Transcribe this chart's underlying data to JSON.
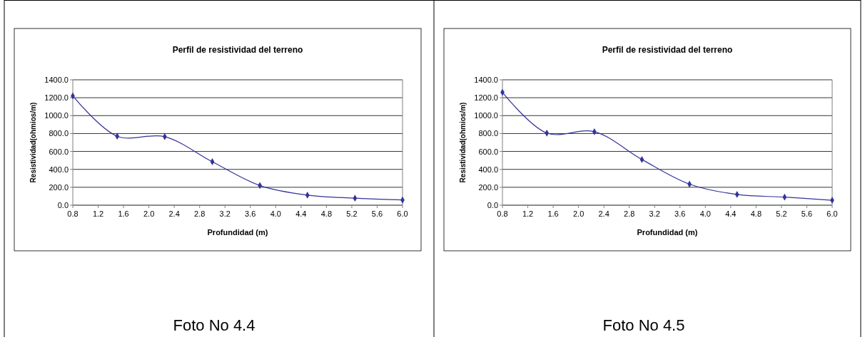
{
  "chart_data": [
    {
      "type": "line",
      "title": "Perfil de resistividad del terreno",
      "xlabel": "Profundidad (m)",
      "ylabel": "Resistividad(ohmios/m)",
      "annotations": [
        "Foto No 4.4"
      ],
      "marker": "diamond",
      "grid": "y",
      "xlim": [
        0.8,
        6.0
      ],
      "ylim": [
        0,
        1400
      ],
      "xticks": [
        {
          "value": 0.8,
          "label": "0.8"
        },
        {
          "value": 1.2,
          "label": "1.2"
        },
        {
          "value": 1.6,
          "label": "1.6"
        },
        {
          "value": 2.0,
          "label": "2.0"
        },
        {
          "value": 2.4,
          "label": "2.4"
        },
        {
          "value": 2.8,
          "label": "2.8"
        },
        {
          "value": 3.2,
          "label": "3.2"
        },
        {
          "value": 3.6,
          "label": "3.6"
        },
        {
          "value": 4.0,
          "label": "4.0"
        },
        {
          "value": 4.4,
          "label": "4.4"
        },
        {
          "value": 4.8,
          "label": "4.8"
        },
        {
          "value": 5.2,
          "label": "5.2"
        },
        {
          "value": 5.6,
          "label": "5.6"
        },
        {
          "value": 6.0,
          "label": "6.0"
        }
      ],
      "yticks": [
        {
          "value": 0,
          "label": "0.0"
        },
        {
          "value": 200,
          "label": "200.0"
        },
        {
          "value": 400,
          "label": "400.0"
        },
        {
          "value": 600,
          "label": "600.0"
        },
        {
          "value": 800,
          "label": "800.0"
        },
        {
          "value": 1000,
          "label": "1000.0"
        },
        {
          "value": 1200,
          "label": "1200.0"
        },
        {
          "value": 1400,
          "label": "1400.0"
        }
      ],
      "x": [
        0.8,
        1.5,
        2.25,
        3.0,
        3.75,
        4.5,
        5.25,
        6.0
      ],
      "series": [
        {
          "color": "#333399",
          "values": [
            1220,
            770,
            765,
            485,
            220,
            112,
            78,
            58
          ]
        }
      ]
    },
    {
      "type": "line",
      "title": "Perfil de resistividad del terreno",
      "xlabel": "Profundidad (m)",
      "ylabel": "Resistividad(ohmios/m)",
      "annotations": [
        "Foto No 4.5"
      ],
      "marker": "diamond",
      "grid": "y",
      "xlim": [
        0.8,
        6.0
      ],
      "ylim": [
        0,
        1400
      ],
      "xticks": [
        {
          "value": 0.8,
          "label": "0.8"
        },
        {
          "value": 1.2,
          "label": "1.2"
        },
        {
          "value": 1.6,
          "label": "1.6"
        },
        {
          "value": 2.0,
          "label": "2.0"
        },
        {
          "value": 2.4,
          "label": "2.4"
        },
        {
          "value": 2.8,
          "label": "2.8"
        },
        {
          "value": 3.2,
          "label": "3.2"
        },
        {
          "value": 3.6,
          "label": "3.6"
        },
        {
          "value": 4.0,
          "label": "4.0"
        },
        {
          "value": 4.4,
          "label": "4.4"
        },
        {
          "value": 4.8,
          "label": "4.8"
        },
        {
          "value": 5.2,
          "label": "5.2"
        },
        {
          "value": 5.6,
          "label": "5.6"
        },
        {
          "value": 6.0,
          "label": "6.0"
        }
      ],
      "yticks": [
        {
          "value": 0,
          "label": "0.0"
        },
        {
          "value": 200,
          "label": "200.0"
        },
        {
          "value": 400,
          "label": "400.0"
        },
        {
          "value": 600,
          "label": "600.0"
        },
        {
          "value": 800,
          "label": "800.0"
        },
        {
          "value": 1000,
          "label": "1000.0"
        },
        {
          "value": 1200,
          "label": "1200.0"
        },
        {
          "value": 1400,
          "label": "1400.0"
        }
      ],
      "x": [
        0.8,
        1.5,
        2.25,
        3.0,
        3.75,
        4.5,
        5.25,
        6.0
      ],
      "series": [
        {
          "color": "#333399",
          "values": [
            1260,
            805,
            820,
            510,
            235,
            120,
            90,
            55
          ]
        }
      ]
    }
  ]
}
